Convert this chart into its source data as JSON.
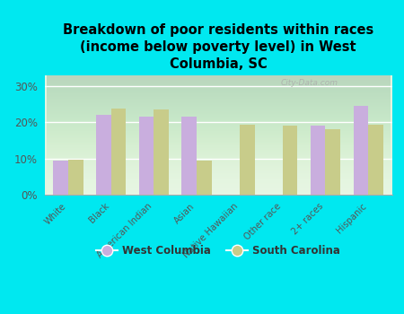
{
  "title": "Breakdown of poor residents within races\n(income below poverty level) in West\nColumbia, SC",
  "categories": [
    "White",
    "Black",
    "American Indian",
    "Asian",
    "Native Hawaiian",
    "Other race",
    "2+ races",
    "Hispanic"
  ],
  "west_columbia": [
    9.5,
    22.0,
    21.5,
    21.5,
    0,
    0,
    19.0,
    24.5
  ],
  "south_carolina": [
    9.7,
    23.8,
    23.5,
    9.5,
    19.3,
    19.0,
    18.0,
    19.3
  ],
  "wc_color": "#c9aede",
  "sc_color": "#c8cc8a",
  "background_color": "#00e8f0",
  "plot_bg": "#e4f5e0",
  "ylim": [
    0,
    33
  ],
  "yticks": [
    0,
    10,
    20,
    30
  ],
  "ytick_labels": [
    "0%",
    "10%",
    "20%",
    "30%"
  ],
  "title_fontsize": 10.5,
  "bar_width": 0.35,
  "watermark": "City-Data.com",
  "legend_labels": [
    "West Columbia",
    "South Carolina"
  ]
}
